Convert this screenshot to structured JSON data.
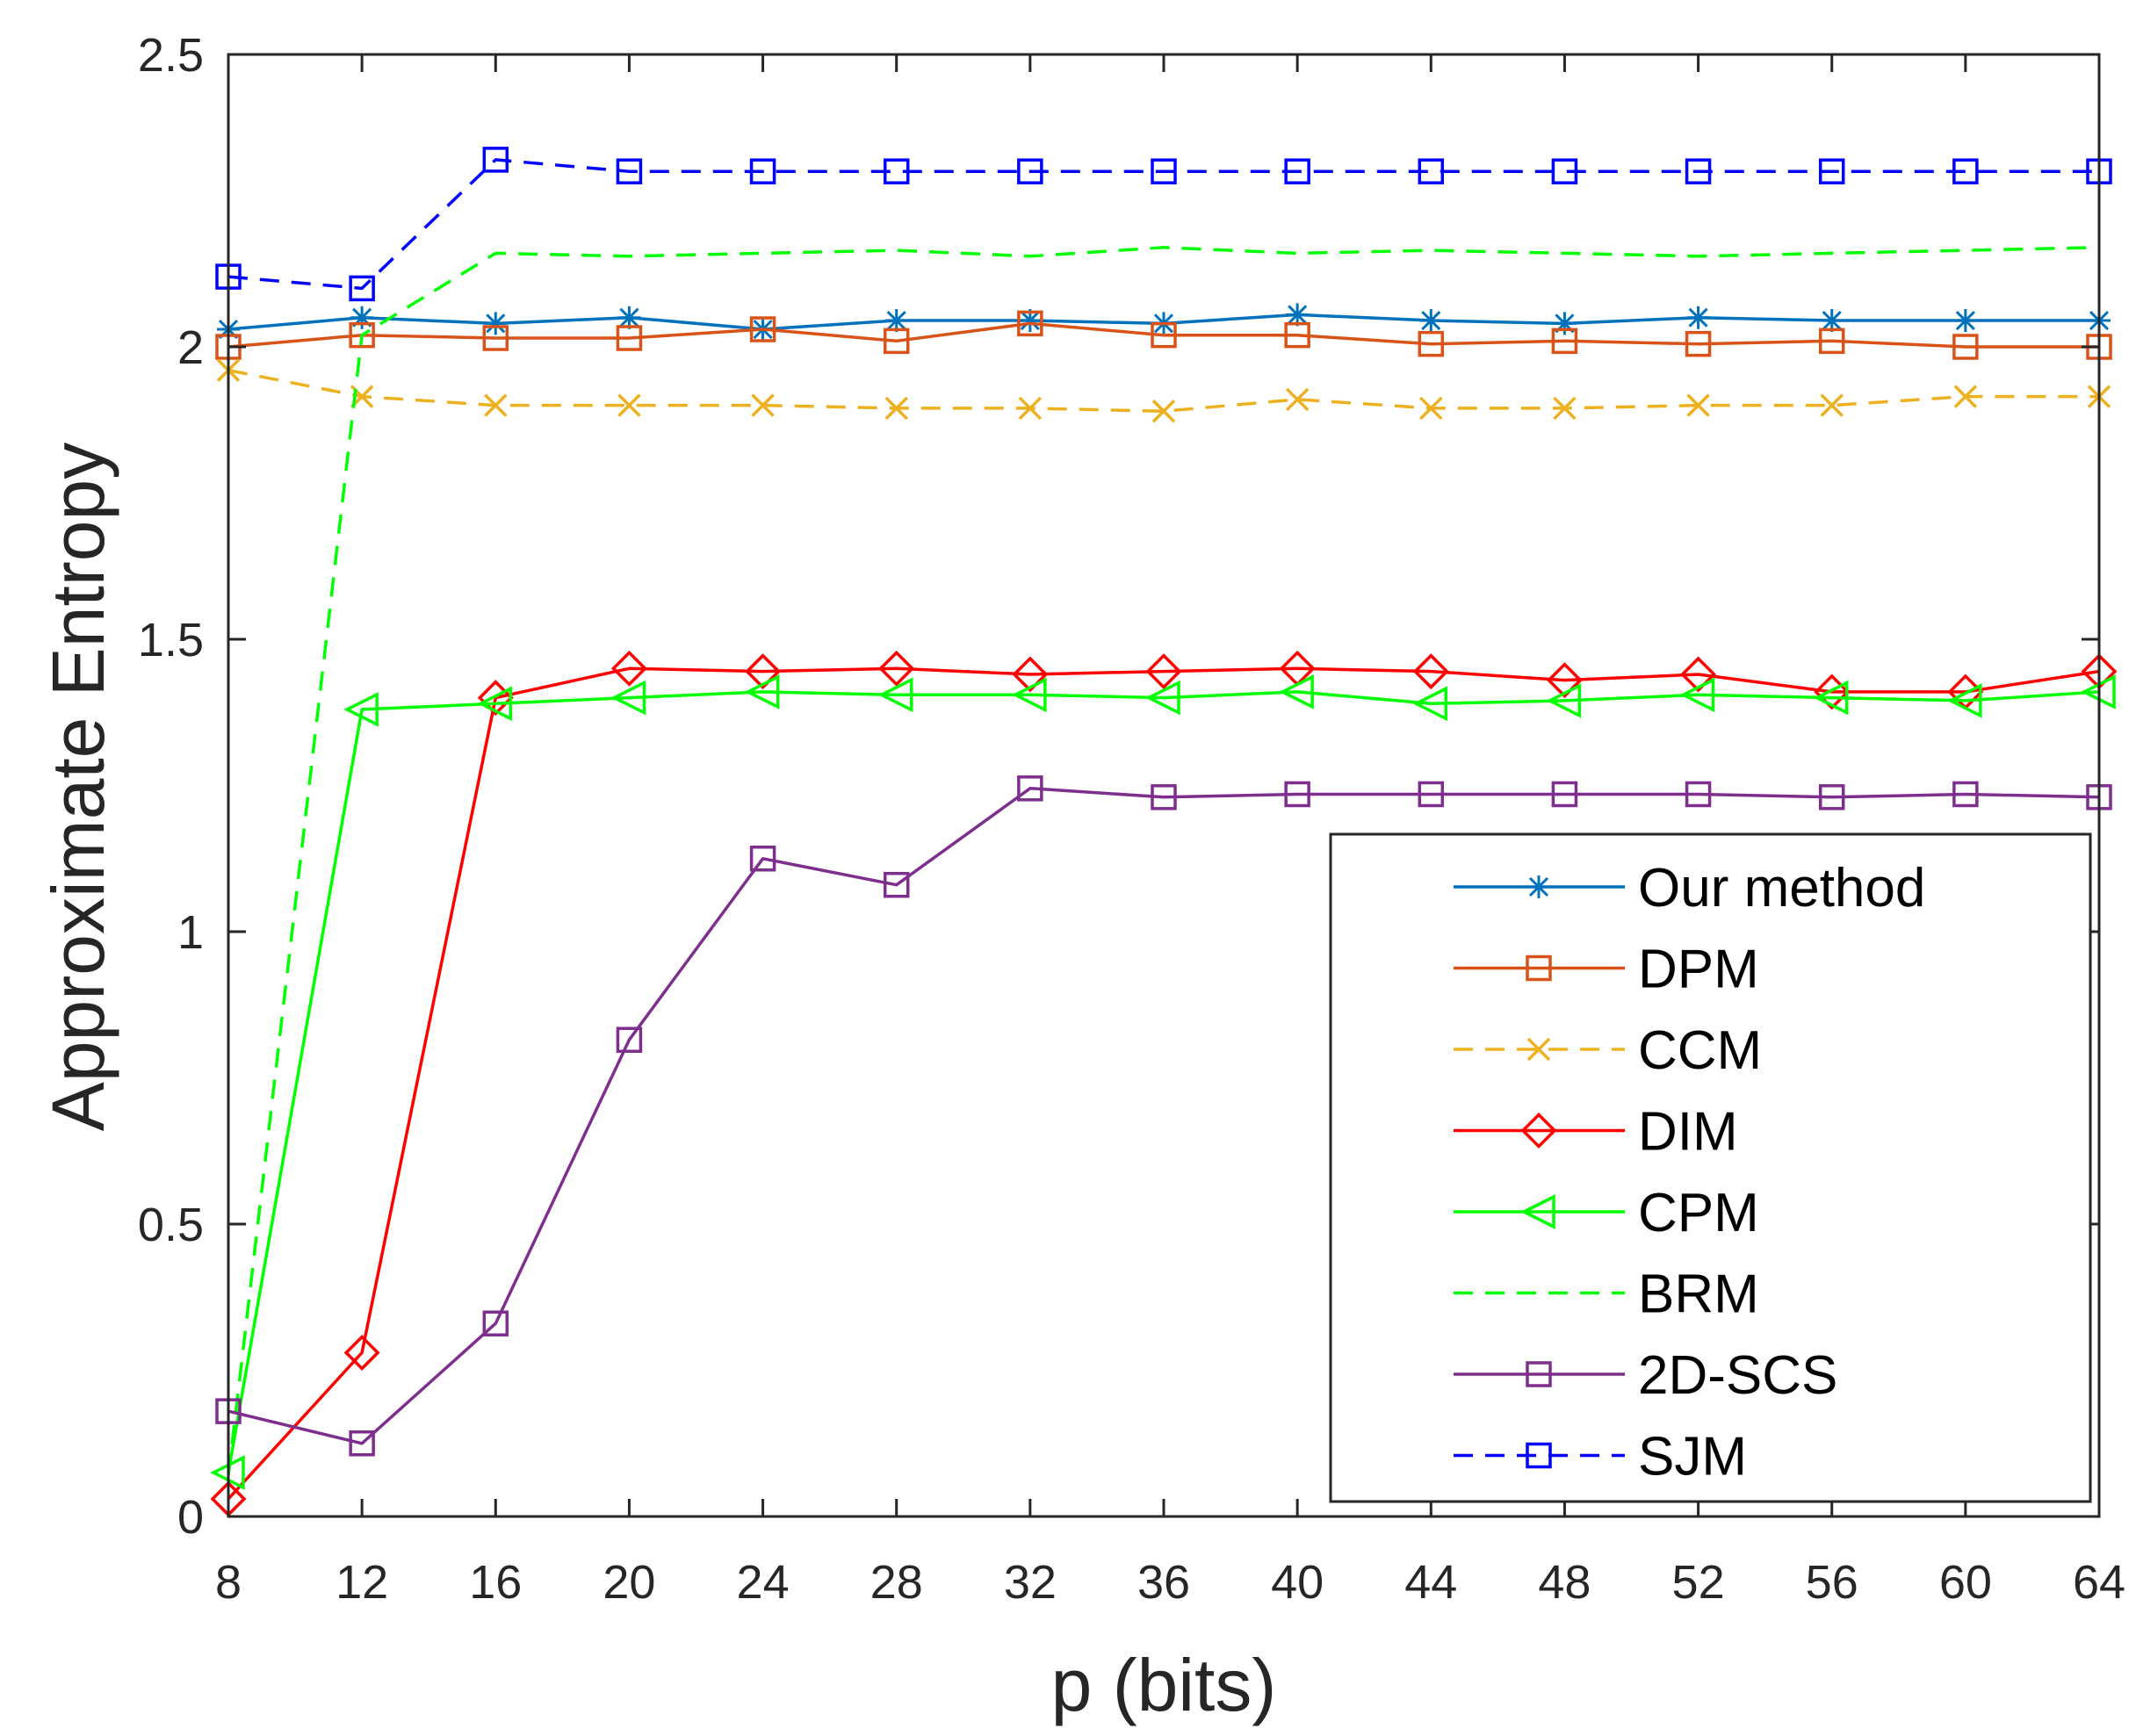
{
  "chart_data": {
    "type": "line",
    "title": "",
    "xlabel": "p (bits)",
    "ylabel": "Approximate Entropy",
    "x": [
      8,
      12,
      16,
      20,
      24,
      28,
      32,
      36,
      40,
      44,
      48,
      52,
      56,
      60,
      64
    ],
    "xlim": [
      8,
      64
    ],
    "ylim": [
      0,
      2.5
    ],
    "xticks": [
      "8",
      "12",
      "16",
      "20",
      "24",
      "28",
      "32",
      "36",
      "40",
      "44",
      "48",
      "52",
      "56",
      "60",
      "64"
    ],
    "yticks": [
      "0",
      "0.5",
      "1",
      "1.5",
      "2",
      "2.5"
    ],
    "grid": false,
    "legend_position": "bottom-right",
    "series": [
      {
        "name": "Our method",
        "color": "#0072BD",
        "dash": "solid",
        "marker": "asterisk",
        "values": [
          2.03,
          2.05,
          2.04,
          2.05,
          2.03,
          2.045,
          2.045,
          2.04,
          2.055,
          2.045,
          2.04,
          2.05,
          2.045,
          2.045,
          2.045
        ]
      },
      {
        "name": "DPM",
        "color": "#D95319",
        "dash": "solid",
        "marker": "square",
        "values": [
          2.0,
          2.02,
          2.015,
          2.015,
          2.03,
          2.01,
          2.04,
          2.02,
          2.02,
          2.005,
          2.01,
          2.005,
          2.01,
          2.0,
          2.0
        ]
      },
      {
        "name": "CCM",
        "color": "#EDB120",
        "dash": "dashed",
        "marker": "x",
        "values": [
          1.96,
          1.915,
          1.9,
          1.9,
          1.9,
          1.895,
          1.895,
          1.89,
          1.91,
          1.895,
          1.895,
          1.9,
          1.9,
          1.915,
          1.915
        ]
      },
      {
        "name": "DIM",
        "color": "#FF0000",
        "dash": "solid",
        "marker": "diamond",
        "values": [
          0.03,
          0.28,
          1.4,
          1.45,
          1.445,
          1.45,
          1.44,
          1.445,
          1.45,
          1.445,
          1.43,
          1.44,
          1.41,
          1.41,
          1.445
        ]
      },
      {
        "name": "CPM",
        "color": "#00FF00",
        "dash": "solid",
        "marker": "triangle-left",
        "values": [
          0.075,
          1.38,
          1.39,
          1.4,
          1.41,
          1.405,
          1.405,
          1.4,
          1.41,
          1.39,
          1.395,
          1.405,
          1.4,
          1.395,
          1.41
        ]
      },
      {
        "name": "BRM",
        "color": "#00FF00",
        "dash": "dashed",
        "marker": "none",
        "values": [
          0.07,
          2.02,
          2.16,
          2.155,
          2.16,
          2.165,
          2.155,
          2.17,
          2.16,
          2.165,
          2.16,
          2.155,
          2.16,
          2.165,
          2.17
        ]
      },
      {
        "name": "2D-SCS",
        "color": "#7E2F8E",
        "dash": "solid",
        "marker": "square",
        "values": [
          0.18,
          0.125,
          0.33,
          0.815,
          1.125,
          1.08,
          1.245,
          1.23,
          1.235,
          1.235,
          1.235,
          1.235,
          1.23,
          1.235,
          1.23
        ]
      },
      {
        "name": "SJM",
        "color": "#0000FF",
        "dash": "dashed",
        "marker": "square",
        "values": [
          2.12,
          2.1,
          2.32,
          2.3,
          2.3,
          2.3,
          2.3,
          2.3,
          2.3,
          2.3,
          2.3,
          2.3,
          2.3,
          2.3,
          2.3
        ]
      }
    ]
  }
}
